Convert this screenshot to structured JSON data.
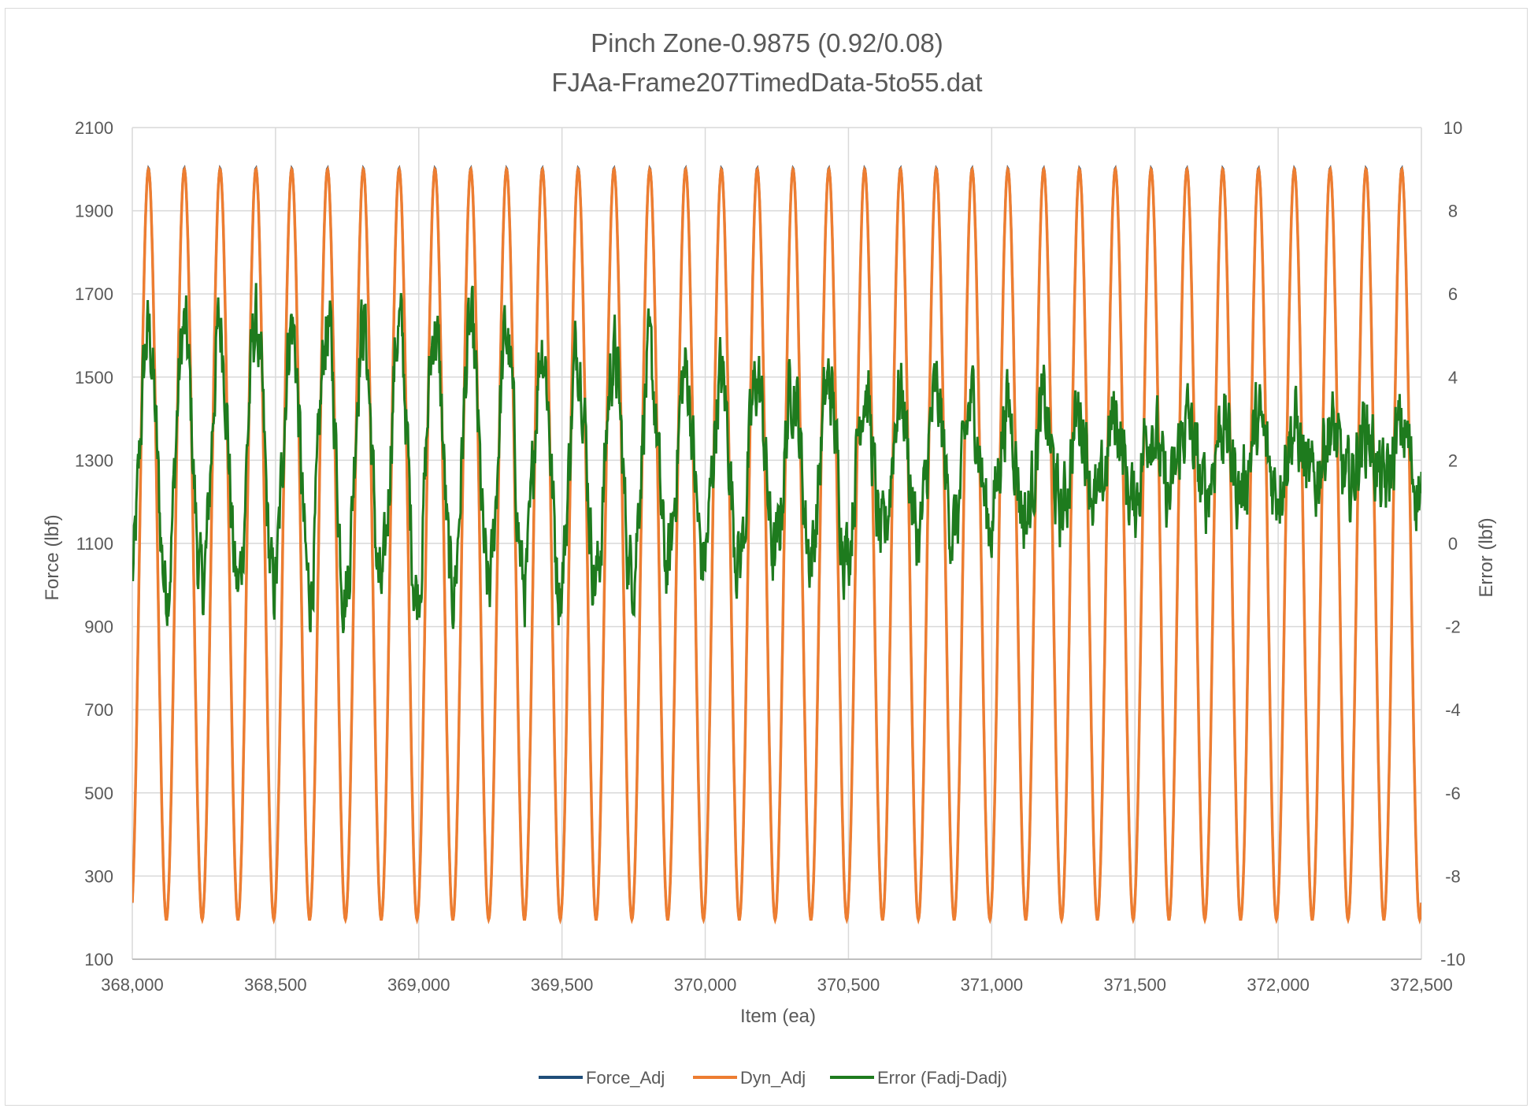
{
  "chart_data": {
    "type": "line",
    "title": "Pinch Zone-0.9875 (0.92/0.08)",
    "subtitle": "FJAa-Frame207TimedData-5to55.dat",
    "xlabel": "Item (ea)",
    "ylabel": "Force (lbf)",
    "y2label": "Error (lbf)",
    "xlim": [
      368000,
      372500
    ],
    "ylim": [
      100,
      2100
    ],
    "y2lim": [
      -10,
      10
    ],
    "x_ticks": [
      "368,000",
      "368,500",
      "369,000",
      "369,500",
      "370,000",
      "370,500",
      "371,000",
      "371,500",
      "372,000",
      "372,500"
    ],
    "y_ticks": [
      "100",
      "300",
      "500",
      "700",
      "900",
      "1100",
      "1300",
      "1500",
      "1700",
      "1900",
      "2100"
    ],
    "y2_ticks": [
      "-10",
      "-8",
      "-6",
      "-4",
      "-2",
      "0",
      "2",
      "4",
      "6",
      "8",
      "10"
    ],
    "grid": true,
    "legend_position": "bottom",
    "cycle_period_items": 125,
    "series": [
      {
        "name": "Force_Adj",
        "axis": "left",
        "color": "#1f4e79",
        "min": 195,
        "max": 2003,
        "period": 125
      },
      {
        "name": "Dyn_Adj",
        "axis": "left",
        "color": "#ed7d31",
        "min": 195,
        "max": 2000,
        "period": 125
      },
      {
        "name": "Error (Fadj-Dadj)",
        "axis": "right",
        "color": "#1e7b1e",
        "envelope_x": [
          368000,
          368500,
          369000,
          369500,
          370000,
          370500,
          371000,
          371500,
          372000,
          372500
        ],
        "envelope_mean": [
          2.0,
          2.1,
          2.0,
          1.9,
          1.8,
          1.8,
          1.9,
          2.0,
          2.1,
          2.0
        ],
        "envelope_amplitude": [
          3.0,
          3.2,
          3.2,
          2.9,
          2.2,
          2.0,
          1.4,
          1.0,
          0.7,
          0.7
        ],
        "min": -2.2,
        "max": 6.6
      }
    ]
  }
}
